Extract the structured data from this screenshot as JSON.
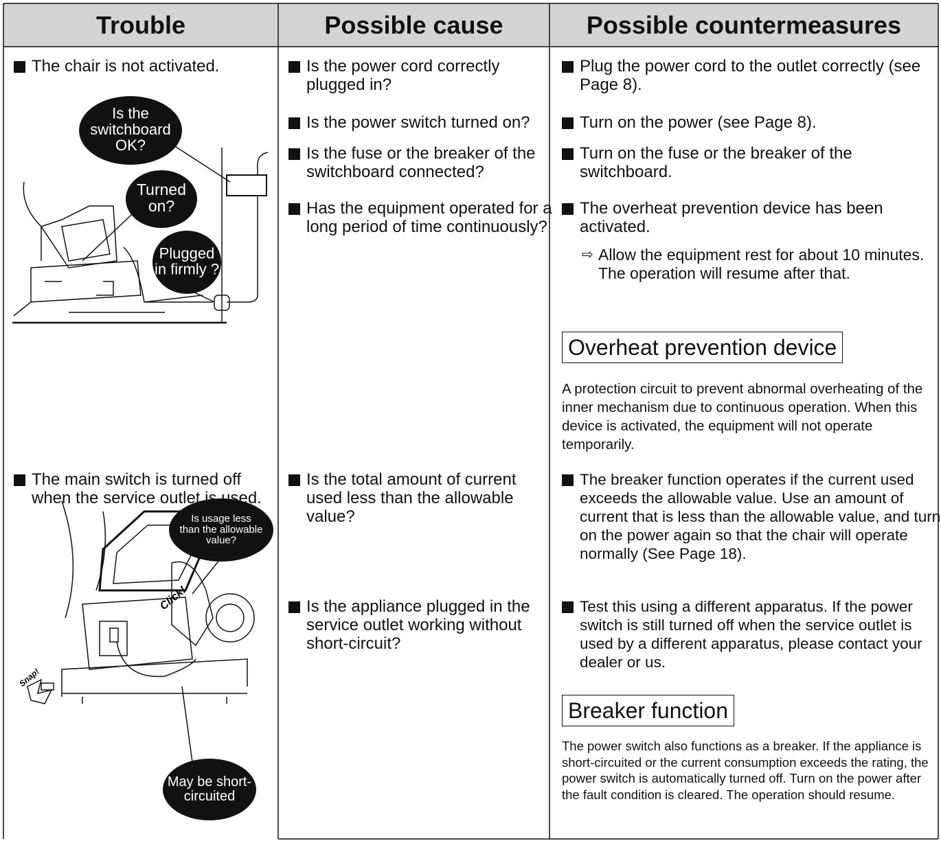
{
  "header": {
    "columns": [
      "Trouble",
      "Possible cause",
      "Possible countermeasures"
    ]
  },
  "rows": [
    {
      "trouble": "The chair is not activated.",
      "bubbles": [
        [
          "Is the",
          "switchboard",
          "OK?"
        ],
        [
          "Turned",
          "on?"
        ],
        [
          "Plugged",
          "in firmly ?"
        ]
      ],
      "causes": [
        "Is the power cord correctly plugged in?",
        "Is the power switch turned on?",
        "Is the fuse or the breaker of the switchboard connected?",
        "Has the equipment operated for a long period of time continuously?"
      ],
      "countermeasures": [
        "Plug the power cord to the outlet correctly (see Page 8).",
        "Turn on the power (see Page 8).",
        "Turn on the fuse or the breaker of the switchboard.",
        "The overheat prevention device has been activated."
      ],
      "note": "Allow the equipment rest for about 10 minutes. The operation will resume after that.",
      "box": {
        "title": "Overheat prevention device",
        "text": "A protection circuit to prevent abnormal overheating of the inner mechanism due to continuous operation. When this device is activated, the equipment will not operate temporarily."
      }
    },
    {
      "trouble": "The main switch is turned off when the service outlet is used.",
      "bubbles": [
        [
          "Is usage less",
          "than the allowable",
          "value?"
        ],
        [
          "May be short-",
          "circuited"
        ]
      ],
      "sounds": [
        "Click!",
        "Snap!"
      ],
      "causes": [
        "Is the total amount of current used less than the allowable value?",
        "Is the appliance plugged in the service outlet working without short-circuit?"
      ],
      "countermeasures": [
        "The breaker function operates if the current used exceeds the allowable value. Use an amount of current that is less than the allowable value, and turn on the power again so that the chair will operate normally (See Page 18).",
        "Test this using a different apparatus. If the power switch is still turned off when the service outlet is used by a different apparatus, please contact your dealer or us."
      ],
      "box": {
        "title": "Breaker function",
        "text": "The power switch also functions as a breaker. If the appliance is short-circuited or the current consumption exceeds the rating, the power switch is automatically turned off. Turn on the power after the fault condition is cleared. The operation should resume."
      }
    }
  ]
}
